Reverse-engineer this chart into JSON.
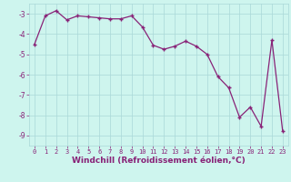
{
  "x": [
    0,
    1,
    2,
    3,
    4,
    5,
    6,
    7,
    8,
    9,
    10,
    11,
    12,
    13,
    14,
    15,
    16,
    17,
    18,
    19,
    20,
    21,
    22,
    23
  ],
  "y": [
    -4.5,
    -3.1,
    -2.85,
    -3.3,
    -3.1,
    -3.15,
    -3.2,
    -3.25,
    -3.25,
    -3.1,
    -3.65,
    -4.55,
    -4.75,
    -4.6,
    -4.35,
    -4.6,
    -5.0,
    -6.1,
    -6.65,
    -8.1,
    -7.6,
    -8.55,
    -4.3,
    -8.8
  ],
  "line_color": "#882277",
  "marker": "+",
  "markersize": 3.5,
  "linewidth": 0.9,
  "bg_color": "#cef5ee",
  "grid_color": "#aad8d8",
  "xlabel": "Windchill (Refroidissement éolien,°C)",
  "xlabel_color": "#882277",
  "xlabel_fontsize": 6.5,
  "tick_color": "#882277",
  "tick_fontsize": 5.0,
  "ylim": [
    -9.5,
    -2.5
  ],
  "yticks": [
    -3,
    -4,
    -5,
    -6,
    -7,
    -8,
    -9
  ],
  "xlim": [
    -0.5,
    23.5
  ],
  "xticks": [
    0,
    1,
    2,
    3,
    4,
    5,
    6,
    7,
    8,
    9,
    10,
    11,
    12,
    13,
    14,
    15,
    16,
    17,
    18,
    19,
    20,
    21,
    22,
    23
  ]
}
